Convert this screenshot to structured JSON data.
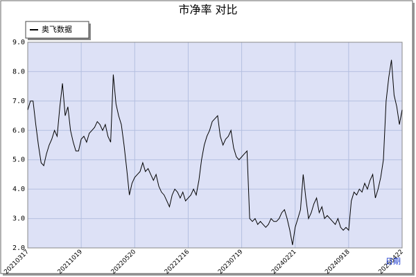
{
  "chart_data": {
    "type": "line",
    "title": "市净率  对比",
    "x_label": "日期",
    "categories": [
      "20210317",
      null,
      null,
      null,
      null,
      null,
      null,
      null,
      null,
      null,
      null,
      null,
      null,
      null,
      null,
      null,
      null,
      null,
      null,
      null,
      "20211019",
      null,
      null,
      null,
      null,
      null,
      null,
      null,
      null,
      null,
      null,
      null,
      null,
      null,
      null,
      null,
      null,
      null,
      null,
      null,
      "20220520",
      null,
      null,
      null,
      null,
      null,
      null,
      null,
      null,
      null,
      null,
      null,
      null,
      null,
      null,
      null,
      null,
      null,
      null,
      null,
      "20221216",
      null,
      null,
      null,
      null,
      null,
      null,
      null,
      null,
      null,
      null,
      null,
      null,
      null,
      null,
      null,
      null,
      null,
      null,
      null,
      "20230719",
      null,
      null,
      null,
      null,
      null,
      null,
      null,
      null,
      null,
      null,
      null,
      null,
      null,
      null,
      null,
      null,
      null,
      null,
      null,
      "20240221",
      null,
      null,
      null,
      null,
      null,
      null,
      null,
      null,
      null,
      null,
      null,
      null,
      null,
      null,
      null,
      null,
      null,
      null,
      null,
      "20240918",
      null,
      null,
      null,
      null,
      null,
      null,
      null,
      null,
      null,
      null,
      null,
      null,
      null,
      null,
      null,
      null,
      null,
      null,
      null,
      "20250422"
    ],
    "series": [
      {
        "name": "奥飞数据",
        "color": "#000000",
        "values": [
          6.7,
          7.0,
          7.0,
          6.2,
          5.5,
          4.9,
          4.8,
          5.2,
          5.5,
          5.7,
          6.0,
          5.8,
          6.8,
          7.6,
          6.5,
          6.8,
          6.0,
          5.6,
          5.3,
          5.3,
          5.7,
          5.8,
          5.6,
          5.9,
          6.0,
          6.1,
          6.3,
          6.2,
          6.0,
          6.2,
          5.8,
          5.6,
          7.9,
          6.9,
          6.5,
          6.2,
          5.5,
          4.7,
          3.8,
          4.2,
          4.4,
          4.5,
          4.6,
          4.9,
          4.6,
          4.7,
          4.5,
          4.3,
          4.5,
          4.1,
          3.9,
          3.8,
          3.6,
          3.4,
          3.8,
          4.0,
          3.9,
          3.7,
          3.9,
          3.6,
          3.7,
          3.8,
          4.0,
          3.8,
          4.3,
          5.0,
          5.5,
          5.8,
          6.0,
          6.3,
          6.4,
          6.5,
          5.8,
          5.5,
          5.7,
          5.8,
          6.0,
          5.4,
          5.1,
          5.0,
          5.1,
          5.2,
          5.3,
          3.0,
          2.9,
          3.0,
          2.8,
          2.9,
          2.8,
          2.7,
          2.8,
          3.0,
          2.9,
          2.9,
          3.0,
          3.2,
          3.3,
          3.0,
          2.6,
          2.1,
          2.7,
          3.0,
          3.3,
          4.5,
          3.7,
          3.0,
          3.2,
          3.5,
          3.7,
          3.2,
          3.4,
          3.0,
          3.1,
          3.0,
          2.9,
          2.8,
          3.0,
          2.7,
          2.6,
          2.7,
          2.6,
          3.6,
          3.9,
          3.8,
          4.0,
          3.9,
          4.2,
          4.0,
          4.3,
          4.5,
          3.7,
          4.0,
          4.4,
          5.0,
          7.0,
          7.8,
          8.4,
          7.2,
          6.8,
          6.2,
          6.7
        ]
      }
    ],
    "ylim": [
      2,
      9
    ],
    "yticks": [
      {
        "value": 2,
        "label": "2.0"
      },
      {
        "value": 3,
        "label": "3.0"
      },
      {
        "value": 4,
        "label": "4.0"
      },
      {
        "value": 5,
        "label": "5.0"
      },
      {
        "value": 6,
        "label": "6.0"
      },
      {
        "value": 7,
        "label": "7.0"
      },
      {
        "value": 8,
        "label": "8.0"
      },
      {
        "value": 9,
        "label": "9.0"
      }
    ],
    "grid": true,
    "legend": "top-left",
    "background": "#dde1f6"
  }
}
